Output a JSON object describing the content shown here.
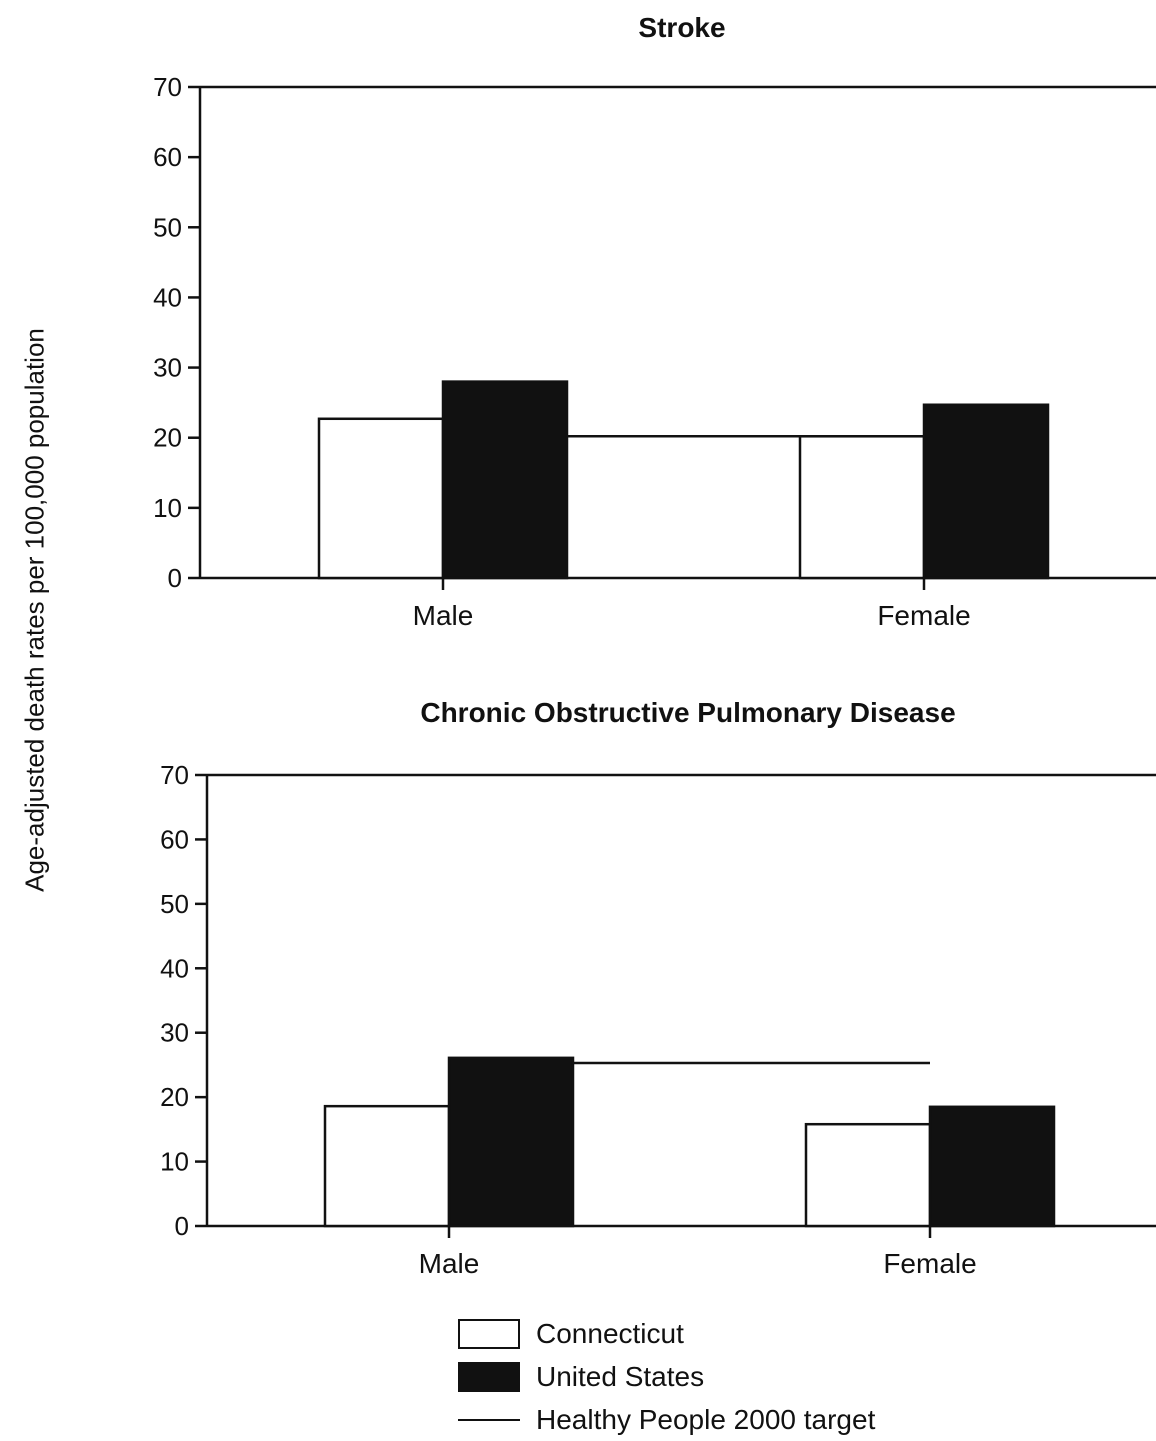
{
  "ylabel": "Age-adjusted death rates per 100,000 population",
  "legend": {
    "items": [
      {
        "label": "Connecticut",
        "style": "open",
        "color": "#ffffff"
      },
      {
        "label": "United States",
        "style": "filled",
        "color": "#111111"
      },
      {
        "label": "Healthy People 2000 target",
        "style": "line",
        "color": "#111111"
      }
    ]
  },
  "chart_data": [
    {
      "type": "bar",
      "title": "Stroke",
      "ylabel": "Age-adjusted death rates per 100,000 population",
      "ylim": [
        0,
        70
      ],
      "yticks": [
        0,
        10,
        20,
        30,
        40,
        50,
        60,
        70
      ],
      "categories": [
        "Male",
        "Female"
      ],
      "series": [
        {
          "name": "Connecticut",
          "values": [
            22.7,
            20.2
          ]
        },
        {
          "name": "United States",
          "values": [
            28.0,
            24.7
          ]
        }
      ],
      "target": {
        "name": "Healthy People 2000 target",
        "value": 20.2
      }
    },
    {
      "type": "bar",
      "title": "Chronic Obstructive Pulmonary Disease",
      "ylabel": "Age-adjusted death rates per 100,000 population",
      "ylim": [
        0,
        70
      ],
      "yticks": [
        0,
        10,
        20,
        30,
        40,
        50,
        60,
        70
      ],
      "categories": [
        "Male",
        "Female"
      ],
      "series": [
        {
          "name": "Connecticut",
          "values": [
            18.6,
            15.8
          ]
        },
        {
          "name": "United States",
          "values": [
            26.1,
            18.5
          ]
        }
      ],
      "target": {
        "name": "Healthy People 2000 target",
        "value": 25.3
      }
    }
  ]
}
